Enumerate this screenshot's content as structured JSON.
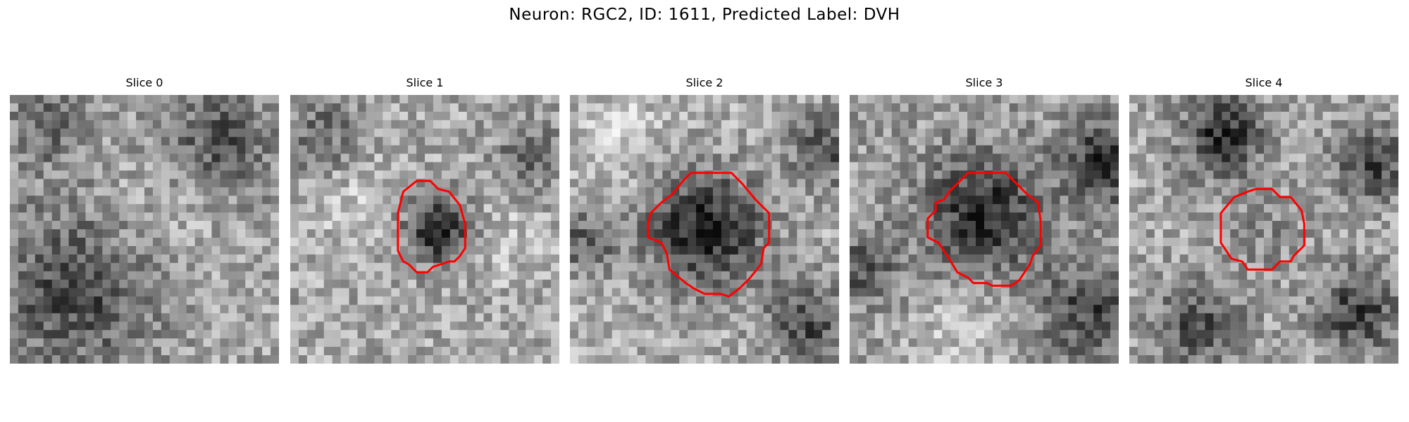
{
  "figure": {
    "title": "Neuron: RGC2, ID: 1611, Predicted Label: DVH"
  },
  "panels": [
    {
      "title": "Slice 0",
      "has_outline": false
    },
    {
      "title": "Slice 1",
      "has_outline": true
    },
    {
      "title": "Slice 2",
      "has_outline": true
    },
    {
      "title": "Slice 3",
      "has_outline": true
    },
    {
      "title": "Slice 4",
      "has_outline": true
    }
  ],
  "colors": {
    "outline": "#ff0000",
    "background": "#ffffff"
  }
}
